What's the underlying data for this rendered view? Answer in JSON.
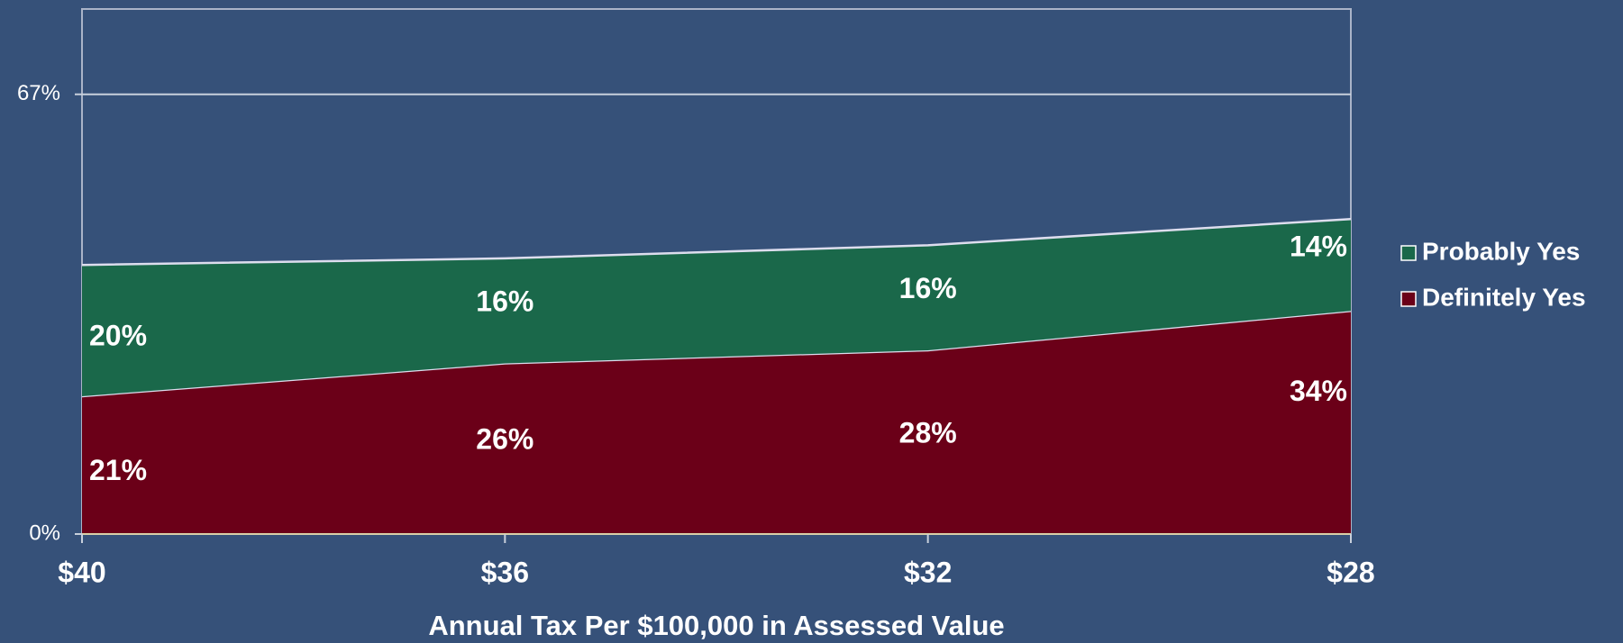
{
  "chart_data": {
    "type": "stacked-area",
    "x_label": "Annual Tax Per $100,000 in Assessed Value",
    "categories": [
      "$40",
      "$36",
      "$32",
      "$28"
    ],
    "series": [
      {
        "name": "Definitely Yes",
        "color": "#6b0018",
        "values": [
          21,
          26,
          28,
          34
        ],
        "value_labels": [
          "21%",
          "26%",
          "28%",
          "34%"
        ]
      },
      {
        "name": "Probably Yes",
        "color": "#1a684a",
        "values": [
          20,
          16,
          16,
          14
        ],
        "value_labels": [
          "20%",
          "16%",
          "16%",
          "14%"
        ]
      }
    ],
    "ylim": [
      0,
      80
    ],
    "yticks": [
      {
        "value": 0,
        "label": "0%"
      },
      {
        "value": 67,
        "label": "67%"
      }
    ],
    "grid": true,
    "legend": "right"
  }
}
